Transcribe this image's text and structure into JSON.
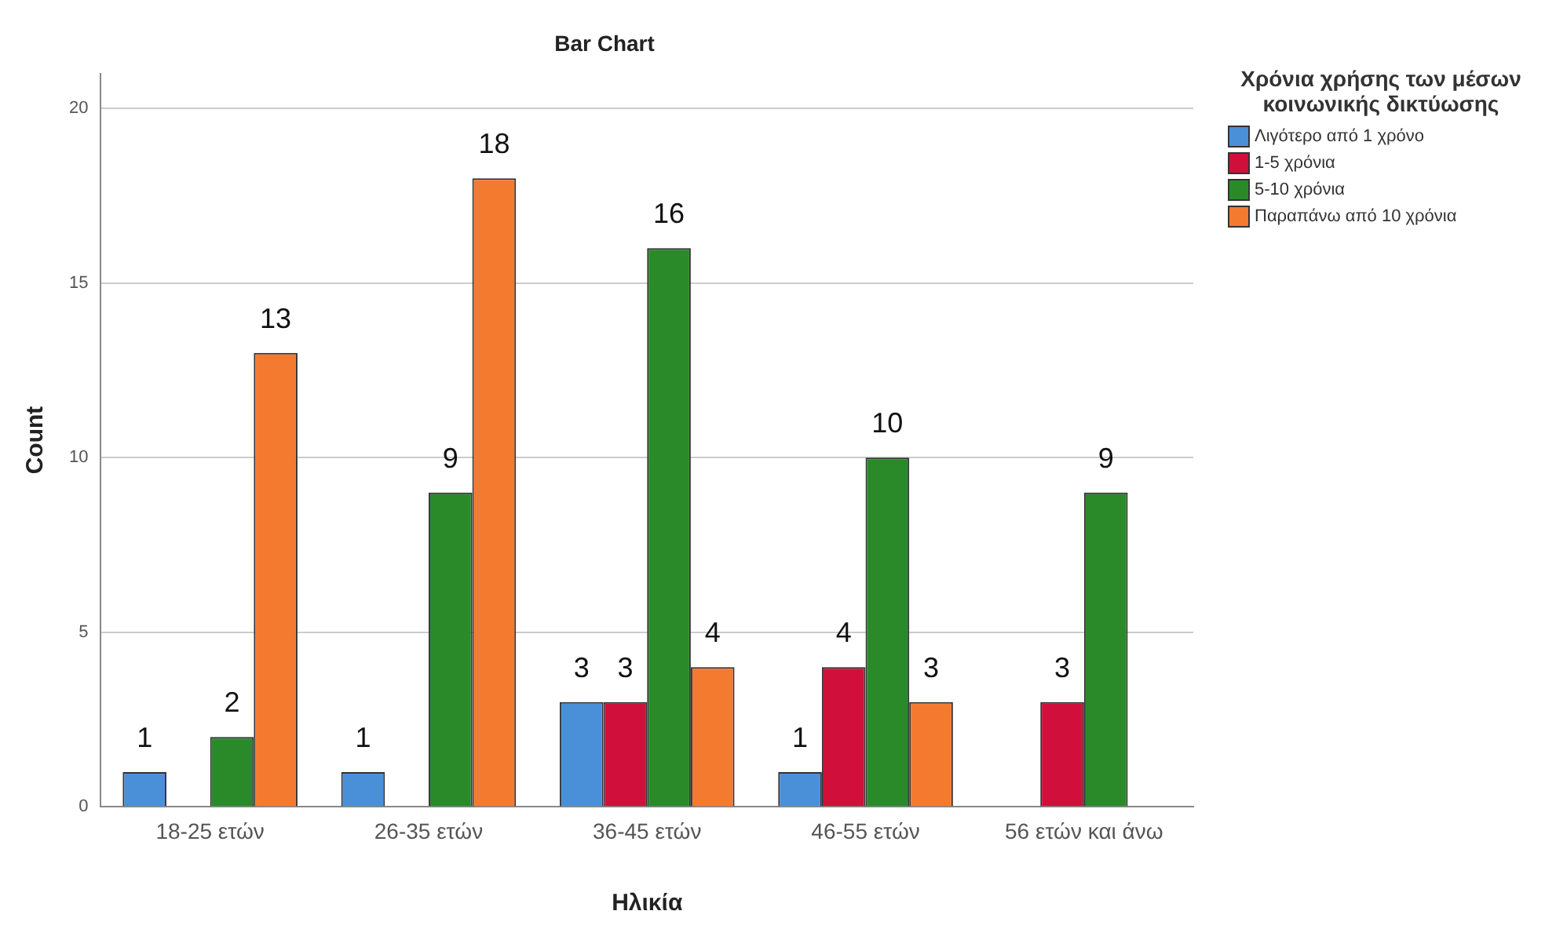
{
  "chart_data": {
    "type": "bar",
    "title": "Bar Chart",
    "xlabel": "Ηλικία",
    "ylabel": "Count",
    "legend_title": "Χρόνια χρήσης των μέσων κοινωνικής δικτύωσης",
    "categories": [
      "18-25 ετών",
      "26-35 ετών",
      "36-45 ετών",
      "46-55 ετών",
      "56 ετών και άνω"
    ],
    "series": [
      {
        "name": "Λιγότερο από 1 χρόνο",
        "color": "#4a90d9",
        "values": [
          1,
          1,
          3,
          1,
          null
        ]
      },
      {
        "name": "1-5 χρόνια",
        "color": "#d0103a",
        "values": [
          null,
          null,
          3,
          4,
          3
        ]
      },
      {
        "name": "5-10 χρόνια",
        "color": "#2a8a2a",
        "values": [
          2,
          9,
          16,
          10,
          9
        ]
      },
      {
        "name": "Παραπάνω από 10 χρόνια",
        "color": "#f47a30",
        "values": [
          13,
          18,
          4,
          3,
          null
        ]
      }
    ],
    "ylim": [
      0,
      21
    ],
    "yticks": [
      0,
      5,
      10,
      15,
      20
    ],
    "grid": "y",
    "legend": "top right",
    "data_labels": true
  }
}
